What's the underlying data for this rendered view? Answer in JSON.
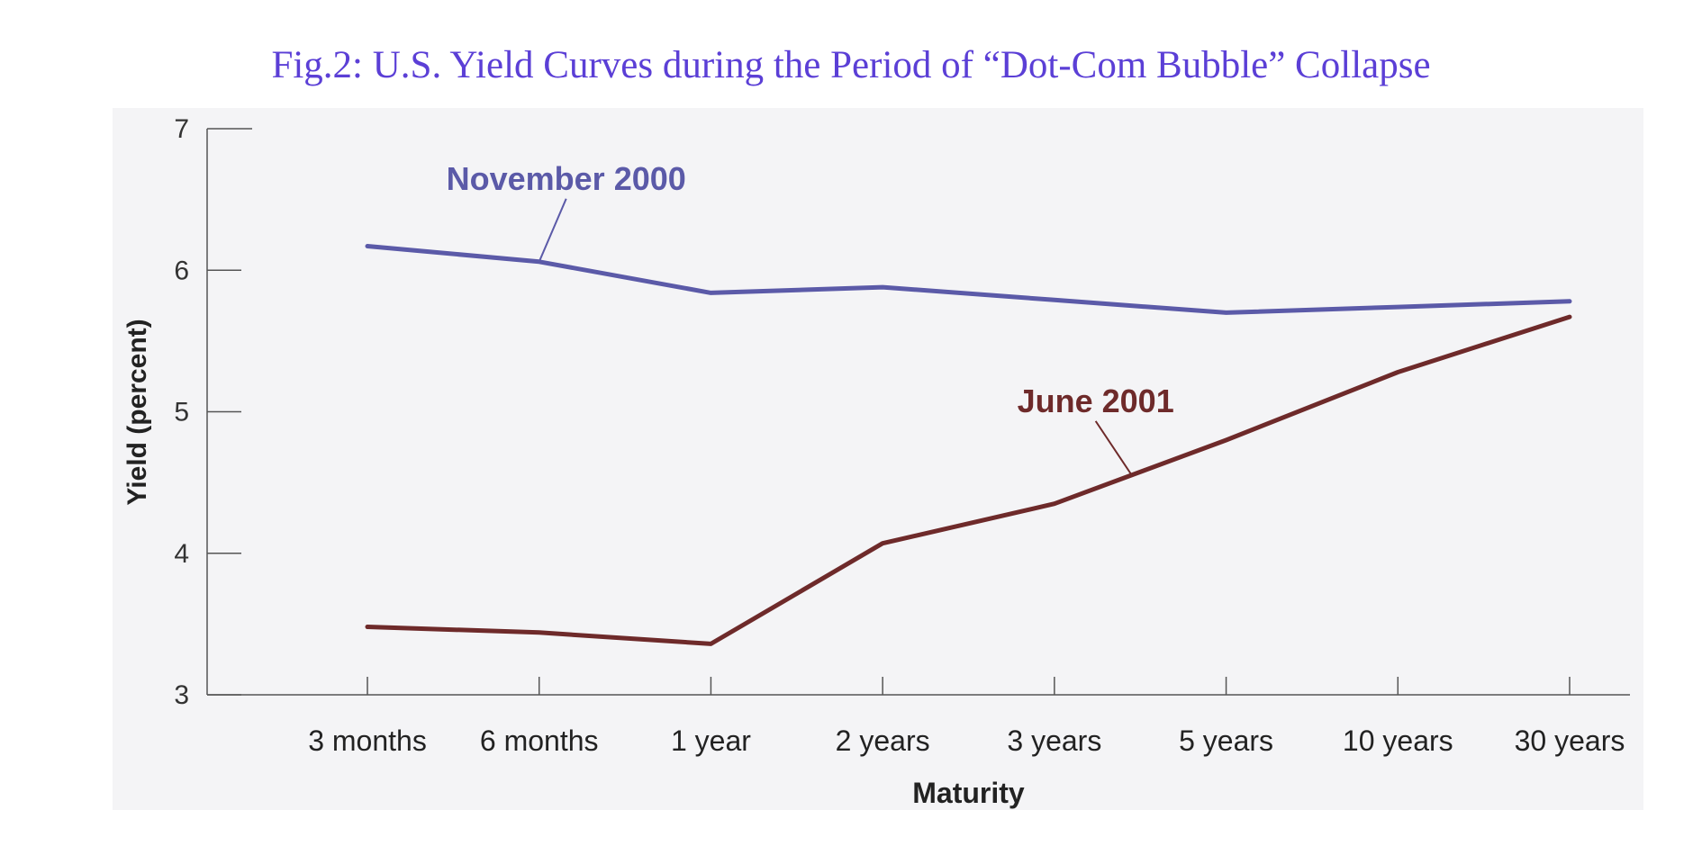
{
  "colors": {
    "title": "#5b3fd6",
    "november_2000": "#5b5aa8",
    "june_2001": "#6e2a2a",
    "axis": "#555555",
    "plot_background": "#f4f4f6"
  },
  "chart_data": {
    "type": "line",
    "title": "Fig.2: U.S. Yield Curves during the Period of “Dot-Com Bubble” Collapse",
    "xlabel": "Maturity",
    "ylabel": "Yield (percent)",
    "ylim": [
      3,
      7
    ],
    "yticks": [
      "3",
      "4",
      "5",
      "6",
      "7"
    ],
    "categories": [
      "3 months",
      "6 months",
      "1 year",
      "2 years",
      "3 years",
      "5 years",
      "10 years",
      "30 years"
    ],
    "grid": false,
    "legend": "inline-labels",
    "series": [
      {
        "name": "November 2000",
        "values": [
          6.17,
          6.06,
          5.84,
          5.88,
          5.79,
          5.7,
          5.74,
          5.78
        ],
        "label_anchor_index": 1
      },
      {
        "name": "June 2001",
        "values": [
          3.48,
          3.44,
          3.36,
          4.07,
          4.35,
          4.8,
          5.28,
          5.67
        ],
        "label_anchor_index": 4.45
      }
    ]
  }
}
